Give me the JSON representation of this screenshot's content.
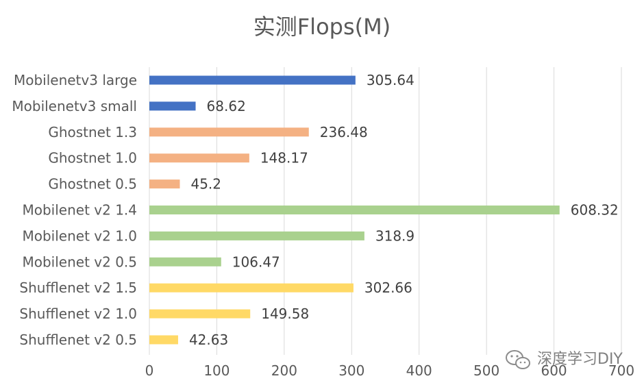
{
  "chart_data": {
    "type": "bar",
    "orientation": "horizontal",
    "title": "实测Flops(M)",
    "categories": [
      "Mobilenetv3 large",
      "Mobilenetv3 small",
      "Ghostnet 1.3",
      "Ghostnet 1.0",
      "Ghostnet 0.5",
      "Mobilenet v2 1.4",
      "Mobilenet v2 1.0",
      "Mobilenet v2 0.5",
      "Shufflenet v2 1.5",
      "Shufflenet v2 1.0",
      "Shufflenet v2 0.5"
    ],
    "values": [
      305.64,
      68.62,
      236.48,
      148.17,
      45.2,
      608.32,
      318.9,
      106.47,
      302.66,
      149.58,
      42.63
    ],
    "value_labels": [
      "305.64",
      "68.62",
      "236.48",
      "148.17",
      "45.2",
      "608.32",
      "318.9",
      "106.47",
      "302.66",
      "149.58",
      "42.63"
    ],
    "bar_colors": [
      "#4472c4",
      "#4472c4",
      "#f4b183",
      "#f4b183",
      "#f4b183",
      "#a9d18e",
      "#a9d18e",
      "#a9d18e",
      "#ffd966",
      "#ffd966",
      "#ffd966"
    ],
    "xlim": [
      0,
      700
    ],
    "xticks": [
      0,
      100,
      200,
      300,
      400,
      500,
      600,
      700
    ],
    "grid": true,
    "legend": "none"
  },
  "watermark": {
    "icon": "wechat-icon",
    "text": "深度学习DIY"
  }
}
